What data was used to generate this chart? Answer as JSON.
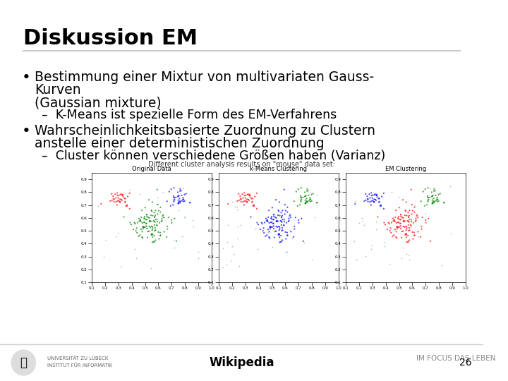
{
  "title": "Diskussion EM",
  "background_color": "#ffffff",
  "title_color": "#000000",
  "title_fontsize": 22,
  "separator_color": "#cccccc",
  "bullet1_line1": "Bestimmung einer Mixtur von multivariaten Gauss-",
  "bullet1_line2": "Kurven",
  "bullet1_line3": "(Gaussian mixture)",
  "sub1": "–  K-Means ist spezielle Form des EM-Verfahrens",
  "bullet2_line1": "Wahrscheinlichkeitsbasierte Zuordnung zu Clustern",
  "bullet2_line2": "anstelle einer deterministischen Zuordnung",
  "sub2": "–  Cluster können verschiedene Größen haben (Varianz)",
  "image_caption": "Different cluster analysis results on \"mouse\" data set:",
  "image_sub1": "Original Data",
  "image_sub2": "k-Means Clustering",
  "image_sub3": "EM Clustering",
  "footer_center": "Wikipedia",
  "footer_right": "IM FOCUS DAS LEBEN",
  "slide_number": "26",
  "footer_color": "#555555",
  "bullet_fontsize": 13.5,
  "sub_fontsize": 12.5,
  "footer_fontsize": 10,
  "body_text_color": "#000000"
}
